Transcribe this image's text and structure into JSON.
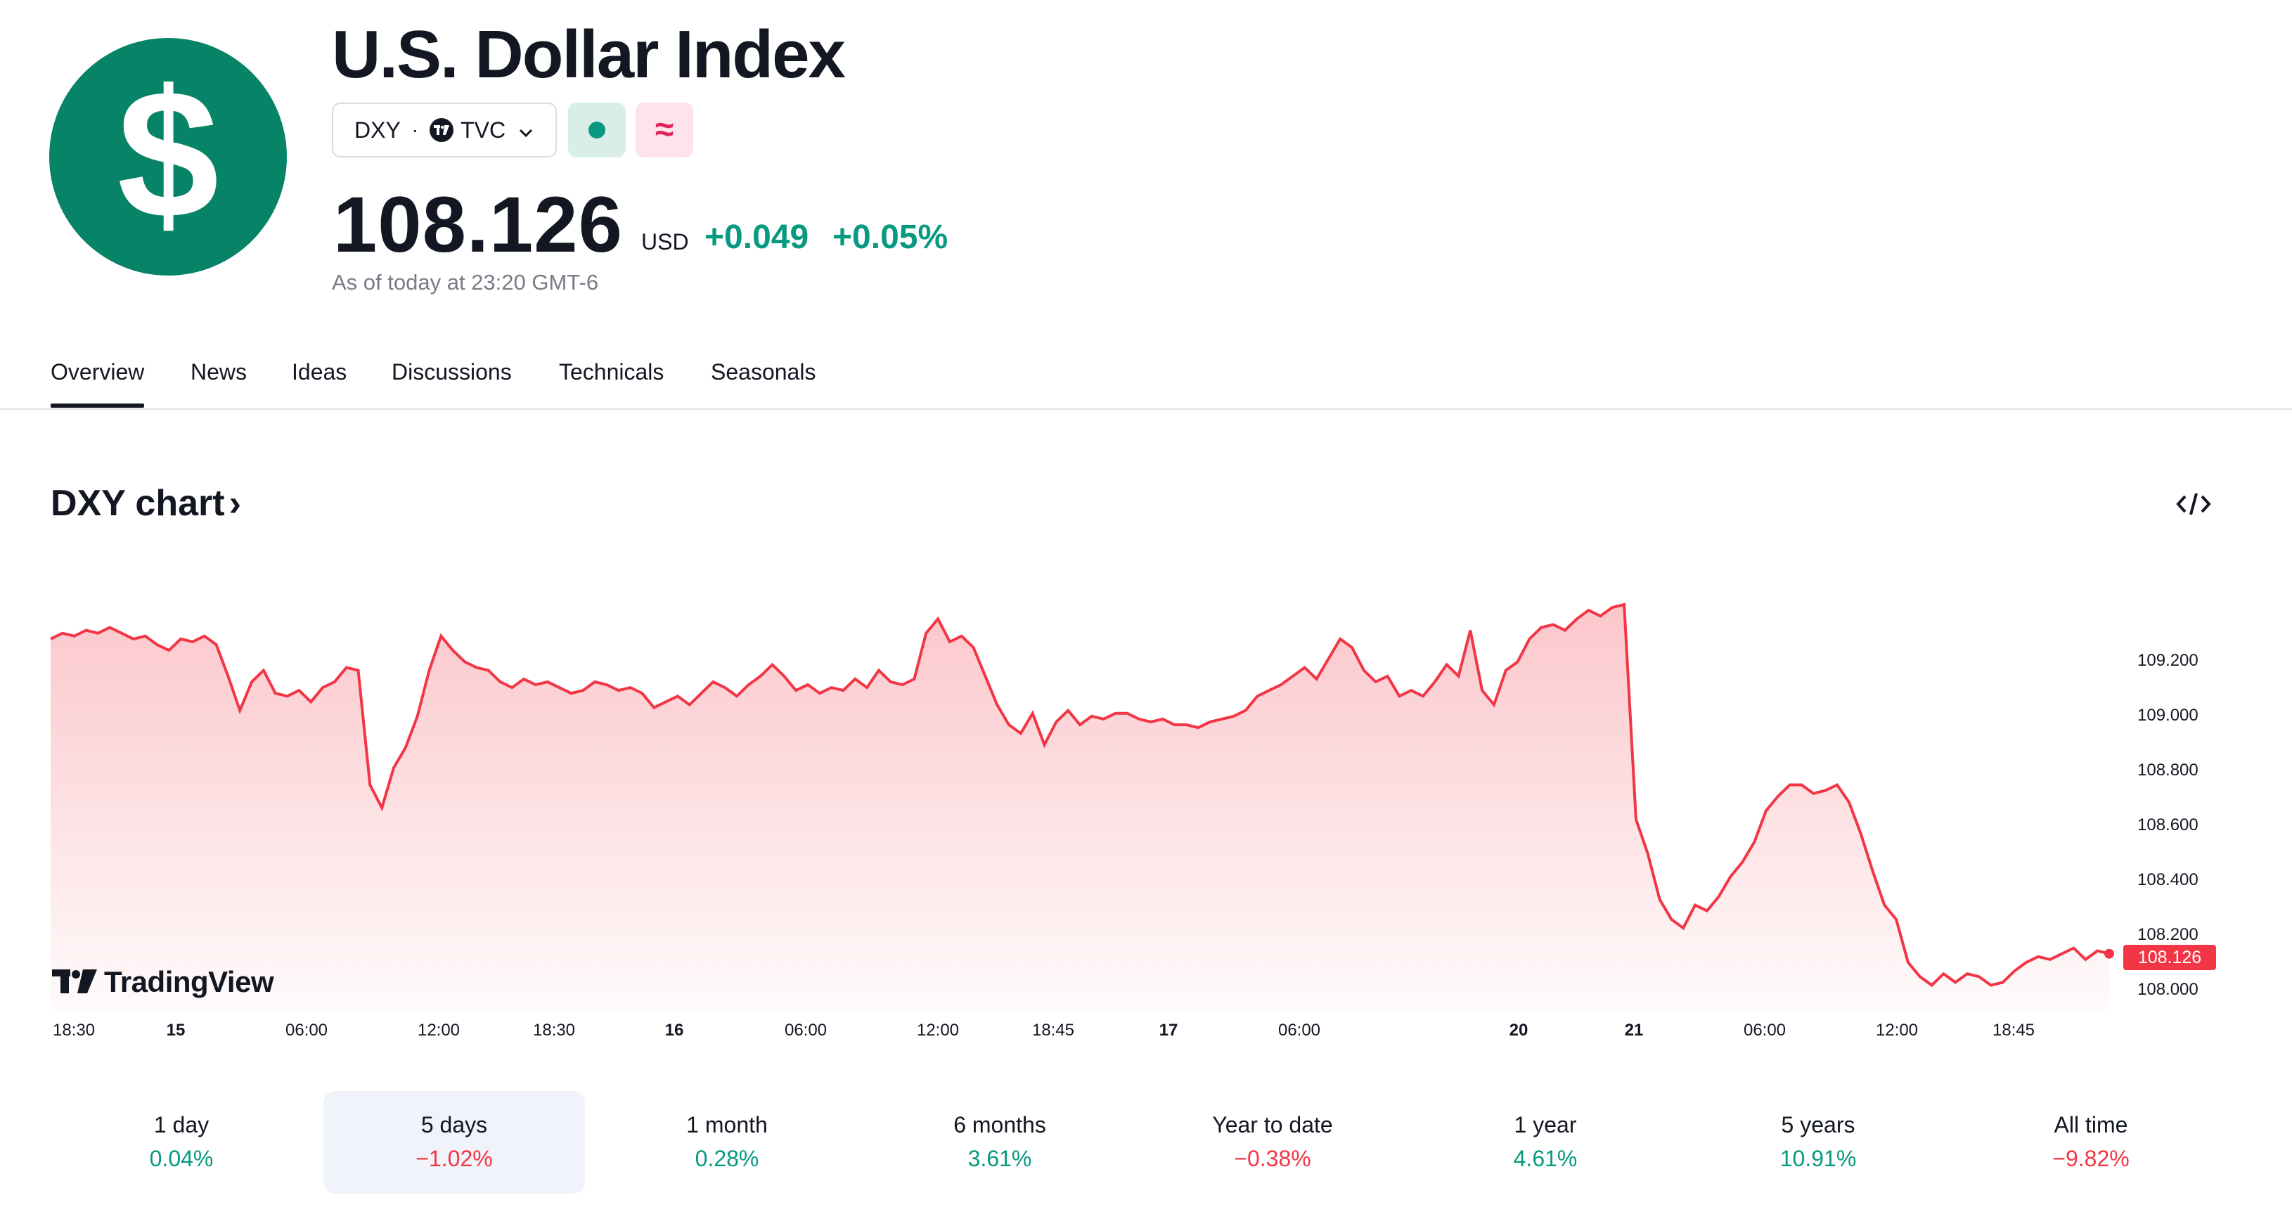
{
  "header": {
    "title": "U.S. Dollar Index",
    "symbol": "DXY",
    "exchange": "TVC",
    "price": "108.126",
    "currency": "USD",
    "change_abs": "+0.049",
    "change_pct": "+0.05%",
    "as_of": "As of today at 23:20 GMT-6",
    "logo_icon": "dollar-sign-icon",
    "colors": {
      "brand": "#078467",
      "positive": "#089981",
      "negative": "#f23645"
    }
  },
  "tabs": [
    {
      "label": "Overview",
      "active": true
    },
    {
      "label": "News"
    },
    {
      "label": "Ideas"
    },
    {
      "label": "Discussions"
    },
    {
      "label": "Technicals"
    },
    {
      "label": "Seasonals"
    }
  ],
  "chart_section": {
    "title": "DXY chart",
    "embed_icon": "code-embed-icon",
    "brand": "TradingView",
    "last_price_tag": "108.126"
  },
  "chart_data": {
    "type": "area",
    "x_tick_labels": [
      "18:30",
      "15",
      "06:00",
      "12:00",
      "18:30",
      "16",
      "06:00",
      "12:00",
      "18:45",
      "17",
      "06:00",
      "20",
      "21",
      "06:00",
      "12:00",
      "18:45"
    ],
    "y_tick_labels": [
      "109.200",
      "109.000",
      "108.800",
      "108.600",
      "108.400",
      "108.200",
      "108.000"
    ],
    "ylim": [
      107.95,
      109.35
    ],
    "series": [
      {
        "color": "#f23645",
        "values": [
          109.23,
          109.25,
          109.24,
          109.26,
          109.25,
          109.27,
          109.25,
          109.23,
          109.24,
          109.21,
          109.19,
          109.23,
          109.22,
          109.24,
          109.21,
          109.1,
          108.98,
          109.08,
          109.12,
          109.04,
          109.03,
          109.05,
          109.01,
          109.06,
          109.08,
          109.13,
          109.12,
          108.72,
          108.64,
          108.78,
          108.85,
          108.96,
          109.12,
          109.24,
          109.19,
          109.15,
          109.13,
          109.12,
          109.08,
          109.06,
          109.09,
          109.07,
          109.08,
          109.06,
          109.04,
          109.05,
          109.08,
          109.07,
          109.05,
          109.06,
          109.04,
          108.99,
          109.01,
          109.03,
          109.0,
          109.04,
          109.08,
          109.06,
          109.03,
          109.07,
          109.1,
          109.14,
          109.1,
          109.05,
          109.07,
          109.04,
          109.06,
          109.05,
          109.09,
          109.06,
          109.12,
          109.08,
          109.07,
          109.09,
          109.25,
          109.3,
          109.22,
          109.24,
          109.2,
          109.1,
          109.0,
          108.93,
          108.9,
          108.97,
          108.86,
          108.94,
          108.98,
          108.93,
          108.96,
          108.95,
          108.97,
          108.97,
          108.95,
          108.94,
          108.95,
          108.93,
          108.93,
          108.92,
          108.94,
          108.95,
          108.96,
          108.98,
          109.03,
          109.05,
          109.07,
          109.1,
          109.13,
          109.09,
          109.16,
          109.23,
          109.2,
          109.12,
          109.08,
          109.1,
          109.03,
          109.05,
          109.03,
          109.08,
          109.14,
          109.1,
          109.26,
          109.05,
          109.0,
          109.12,
          109.15,
          109.23,
          109.27,
          109.28,
          109.26,
          109.3,
          109.33,
          109.31,
          109.34,
          109.35,
          108.6,
          108.48,
          108.32,
          108.25,
          108.22,
          108.3,
          108.28,
          108.33,
          108.4,
          108.45,
          108.52,
          108.63,
          108.68,
          108.72,
          108.72,
          108.69,
          108.7,
          108.72,
          108.66,
          108.55,
          108.42,
          108.3,
          108.25,
          108.1,
          108.05,
          108.02,
          108.06,
          108.03,
          108.06,
          108.05,
          108.02,
          108.03,
          108.07,
          108.1,
          108.12,
          108.11,
          108.13,
          108.15,
          108.11,
          108.14,
          108.13
        ]
      }
    ]
  },
  "periods": [
    {
      "label": "1 day",
      "value": "0.04%",
      "dir": "pos"
    },
    {
      "label": "5 days",
      "value": "−1.02%",
      "dir": "neg",
      "selected": true
    },
    {
      "label": "1 month",
      "value": "0.28%",
      "dir": "pos"
    },
    {
      "label": "6 months",
      "value": "3.61%",
      "dir": "pos"
    },
    {
      "label": "Year to date",
      "value": "−0.38%",
      "dir": "neg"
    },
    {
      "label": "1 year",
      "value": "4.61%",
      "dir": "pos"
    },
    {
      "label": "5 years",
      "value": "10.91%",
      "dir": "pos"
    },
    {
      "label": "All time",
      "value": "−9.82%",
      "dir": "neg"
    }
  ]
}
